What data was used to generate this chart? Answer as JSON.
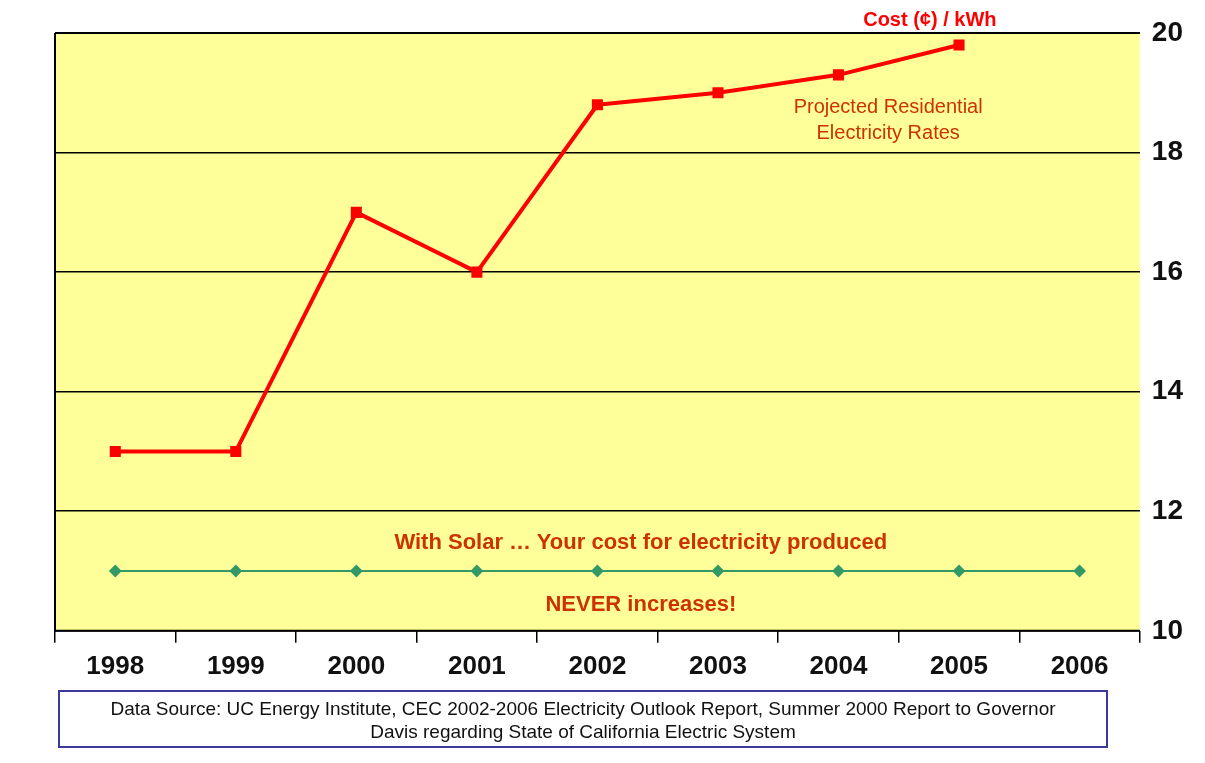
{
  "chart_data": {
    "type": "line",
    "ylabel": "Cost (¢) / kWh",
    "categories": [
      "1998",
      "1999",
      "2000",
      "2001",
      "2002",
      "2003",
      "2004",
      "2005",
      "2006"
    ],
    "series": [
      {
        "color": "#ff0000",
        "marker": "square",
        "values": [
          13.0,
          13.0,
          17.0,
          16.0,
          18.8,
          19.0,
          19.3,
          19.8,
          null
        ]
      },
      {
        "color": "#339966",
        "marker": "diamond",
        "values": [
          11,
          11,
          11,
          11,
          11,
          11,
          11,
          11,
          11
        ]
      }
    ],
    "ylim": [
      10,
      20
    ],
    "yticks": [
      10,
      12,
      14,
      16,
      18,
      20
    ],
    "grid": "y",
    "legend": false,
    "annotations": [
      "Projected Residential Electricity Rates",
      "With Solar … Your cost for electricity produced NEVER increases!",
      "Data Source:  UC Energy Institute, CEC 2002-2006 Electricity Outlook Report, Summer 2000 Report to Governor Davis regarding State of California Electric System"
    ]
  }
}
